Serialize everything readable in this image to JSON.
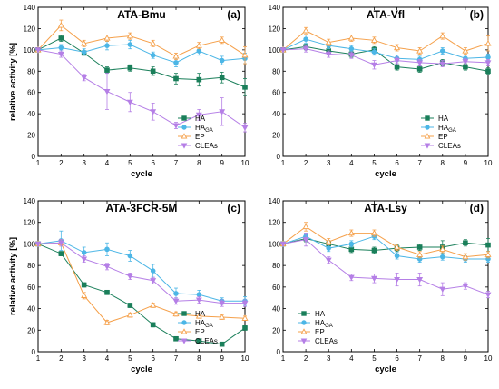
{
  "chart_data": [
    {
      "type": "line",
      "title": "ATA-Bmu",
      "panel_label": "(a)",
      "xlabel": "cycle",
      "ylabel": "relative activity [%]",
      "xlim": [
        1,
        10
      ],
      "ylim": [
        0,
        140
      ],
      "x_ticks": [
        "1",
        "2",
        "3",
        "4",
        "5",
        "6",
        "7",
        "8",
        "9",
        "10"
      ],
      "y_ticks": [
        "0",
        "20",
        "40",
        "60",
        "80",
        "100",
        "120",
        "140"
      ],
      "legend_position": "lower-right",
      "x": [
        1,
        2,
        3,
        4,
        5,
        6,
        7,
        8,
        9,
        10
      ],
      "series": [
        {
          "name": "HA",
          "name_sub": "",
          "color": "#1a7f5a",
          "marker": "square",
          "values": [
            100,
            111,
            97,
            81,
            83,
            80,
            73,
            72,
            74,
            65
          ],
          "errors": [
            0,
            3,
            2,
            3,
            3,
            4,
            5,
            6,
            5,
            8
          ]
        },
        {
          "name": "HA",
          "name_sub": "GA",
          "color": "#4cb6e6",
          "marker": "circle",
          "values": [
            100,
            102,
            98,
            104,
            105,
            95,
            88,
            99,
            90,
            92
          ],
          "errors": [
            0,
            3,
            3,
            4,
            4,
            3,
            4,
            4,
            4,
            5
          ]
        },
        {
          "name": "EP",
          "name_sub": "",
          "color": "#f5a04a",
          "marker": "triangle-up",
          "values": [
            100,
            123,
            106,
            111,
            113,
            106,
            94,
            104,
            109,
            95
          ],
          "errors": [
            0,
            5,
            3,
            3,
            3,
            3,
            3,
            3,
            3,
            8
          ]
        },
        {
          "name": "CLEAs",
          "name_sub": "",
          "color": "#b57fe6",
          "marker": "triangle-down",
          "values": [
            100,
            96,
            74,
            61,
            51,
            42,
            29,
            39,
            42,
            27
          ],
          "errors": [
            0,
            3,
            3,
            17,
            9,
            8,
            3,
            5,
            13,
            4
          ]
        }
      ]
    },
    {
      "type": "line",
      "title": "ATA-Vfl",
      "panel_label": "(b)",
      "xlabel": "cycle",
      "ylabel": "",
      "xlim": [
        1,
        10
      ],
      "ylim": [
        0,
        140
      ],
      "x_ticks": [
        "1",
        "2",
        "3",
        "4",
        "5",
        "6",
        "7",
        "8",
        "9",
        "10"
      ],
      "y_ticks": [
        "0",
        "20",
        "40",
        "60",
        "80",
        "100",
        "120",
        "140"
      ],
      "legend_position": "lower-right",
      "x": [
        1,
        2,
        3,
        4,
        5,
        6,
        7,
        8,
        9,
        10
      ],
      "series": [
        {
          "name": "HA",
          "name_sub": "",
          "color": "#1a7f5a",
          "marker": "square",
          "values": [
            100,
            103,
            99,
            96,
            100,
            84,
            82,
            88,
            84,
            80
          ],
          "errors": [
            0,
            3,
            3,
            3,
            3,
            3,
            3,
            3,
            3,
            3
          ]
        },
        {
          "name": "HA",
          "name_sub": "GA",
          "color": "#4cb6e6",
          "marker": "circle",
          "values": [
            100,
            110,
            104,
            101,
            98,
            92,
            91,
            99,
            92,
            93
          ],
          "errors": [
            0,
            4,
            3,
            3,
            3,
            3,
            3,
            3,
            3,
            3
          ]
        },
        {
          "name": "EP",
          "name_sub": "",
          "color": "#f5a04a",
          "marker": "triangle-up",
          "values": [
            100,
            118,
            107,
            111,
            109,
            102,
            99,
            113,
            99,
            106
          ],
          "errors": [
            0,
            3,
            3,
            3,
            3,
            3,
            3,
            3,
            3,
            7
          ]
        },
        {
          "name": "CLEAs",
          "name_sub": "",
          "color": "#b57fe6",
          "marker": "triangle-down",
          "values": [
            100,
            101,
            96,
            95,
            86,
            90,
            88,
            87,
            89,
            88
          ],
          "errors": [
            0,
            3,
            3,
            3,
            4,
            3,
            3,
            3,
            3,
            3
          ]
        }
      ]
    },
    {
      "type": "line",
      "title": "ATA-3FCR-5M",
      "panel_label": "(c)",
      "xlabel": "cycle",
      "ylabel": "relative activity [%]",
      "xlim": [
        1,
        10
      ],
      "ylim": [
        0,
        140
      ],
      "x_ticks": [
        "1",
        "2",
        "3",
        "4",
        "5",
        "6",
        "7",
        "8",
        "9",
        "10"
      ],
      "y_ticks": [
        "0",
        "20",
        "40",
        "60",
        "80",
        "100",
        "120",
        "140"
      ],
      "legend_position": "top-right",
      "x": [
        1,
        2,
        3,
        4,
        5,
        6,
        7,
        8,
        9,
        10
      ],
      "series": [
        {
          "name": "HA",
          "name_sub": "",
          "color": "#1a7f5a",
          "marker": "square",
          "values": [
            100,
            91,
            62,
            55,
            43,
            25,
            12,
            10,
            7,
            22
          ],
          "errors": [
            0,
            2,
            2,
            2,
            2,
            2,
            1,
            1,
            1,
            2
          ]
        },
        {
          "name": "HA",
          "name_sub": "GA",
          "color": "#4cb6e6",
          "marker": "circle",
          "values": [
            100,
            103,
            92,
            95,
            89,
            75,
            54,
            53,
            47,
            47
          ],
          "errors": [
            0,
            9,
            5,
            6,
            5,
            6,
            5,
            4,
            3,
            4
          ]
        },
        {
          "name": "EP",
          "name_sub": "",
          "color": "#f5a04a",
          "marker": "triangle-up",
          "values": [
            100,
            101,
            52,
            27,
            34,
            43,
            35,
            33,
            32,
            31
          ],
          "errors": [
            0,
            3,
            3,
            2,
            2,
            2,
            2,
            2,
            2,
            2
          ]
        },
        {
          "name": "CLEAs",
          "name_sub": "",
          "color": "#b57fe6",
          "marker": "triangle-down",
          "values": [
            100,
            101,
            86,
            79,
            70,
            66,
            47,
            48,
            45,
            45
          ],
          "errors": [
            0,
            3,
            3,
            3,
            3,
            3,
            3,
            3,
            3,
            3
          ]
        }
      ]
    },
    {
      "type": "line",
      "title": "ATA-Lsy",
      "panel_label": "(d)",
      "xlabel": "cycle",
      "ylabel": "",
      "xlim": [
        1,
        10
      ],
      "ylim": [
        0,
        140
      ],
      "x_ticks": [
        "1",
        "2",
        "3",
        "4",
        "5",
        "6",
        "7",
        "8",
        "9",
        "10"
      ],
      "y_ticks": [
        "0",
        "20",
        "40",
        "60",
        "80",
        "100",
        "120",
        "140"
      ],
      "legend_position": "lower-left",
      "x": [
        1,
        2,
        3,
        4,
        5,
        6,
        7,
        8,
        9,
        10
      ],
      "series": [
        {
          "name": "HA",
          "name_sub": "",
          "color": "#1a7f5a",
          "marker": "square",
          "values": [
            100,
            105,
            100,
            95,
            94,
            96,
            97,
            97,
            101,
            99
          ],
          "errors": [
            0,
            3,
            3,
            3,
            3,
            3,
            3,
            6,
            3,
            6
          ]
        },
        {
          "name": "HA",
          "name_sub": "GA",
          "color": "#4cb6e6",
          "marker": "circle",
          "values": [
            100,
            107,
            96,
            100,
            107,
            89,
            86,
            88,
            86,
            86
          ],
          "errors": [
            0,
            3,
            3,
            3,
            3,
            3,
            3,
            3,
            3,
            3
          ]
        },
        {
          "name": "EP",
          "name_sub": "",
          "color": "#f5a04a",
          "marker": "triangle-up",
          "values": [
            100,
            116,
            102,
            110,
            110,
            97,
            90,
            95,
            88,
            90
          ],
          "errors": [
            0,
            4,
            3,
            3,
            3,
            3,
            3,
            3,
            3,
            3
          ]
        },
        {
          "name": "CLEAs",
          "name_sub": "",
          "color": "#b57fe6",
          "marker": "triangle-down",
          "values": [
            100,
            104,
            85,
            69,
            68,
            67,
            67,
            58,
            61,
            53
          ],
          "errors": [
            0,
            6,
            3,
            3,
            4,
            6,
            6,
            6,
            3,
            3
          ]
        }
      ]
    }
  ]
}
